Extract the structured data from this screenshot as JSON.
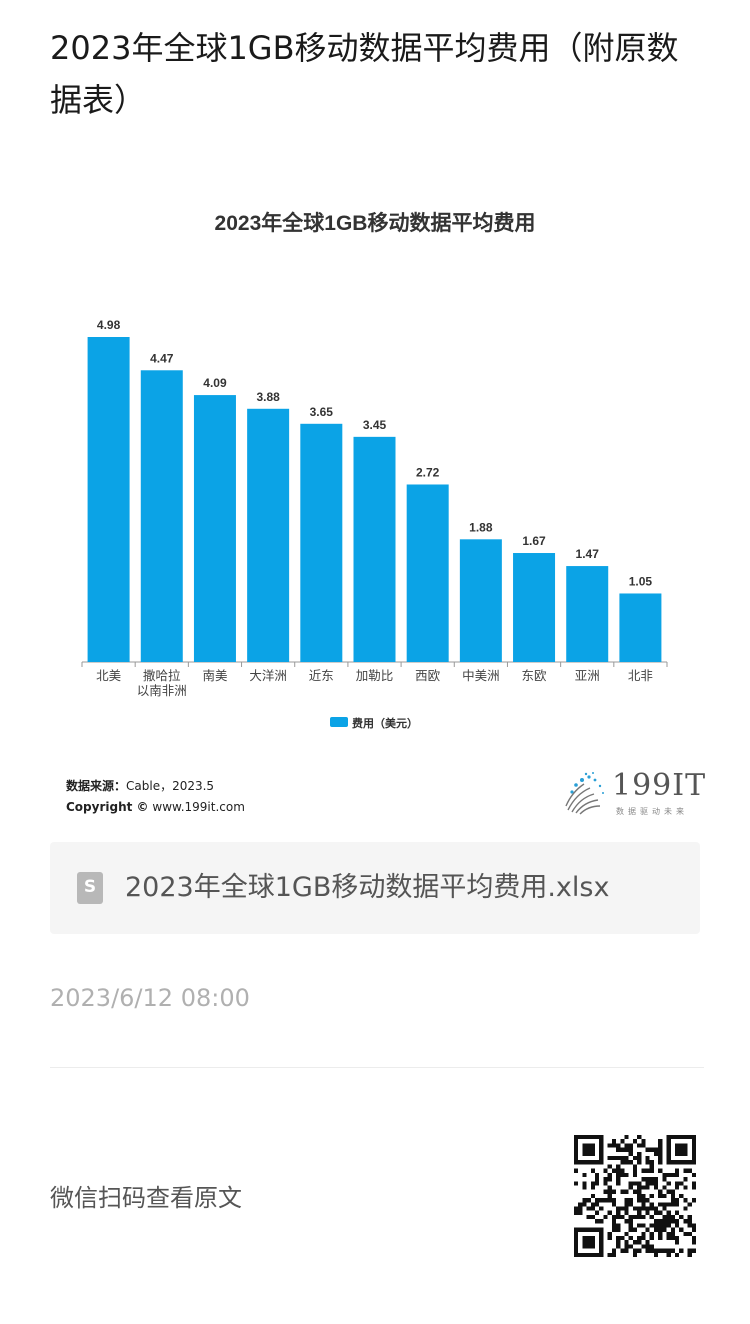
{
  "article": {
    "title": "2023年全球1GB移动数据平均费用（附原数据表）"
  },
  "chart_data": {
    "type": "bar",
    "title": "2023年全球1GB移动数据平均费用",
    "categories": [
      "北美",
      "撒哈拉以南非洲",
      "南美",
      "大洋洲",
      "近东",
      "加勒比",
      "西欧",
      "中美洲",
      "东欧",
      "亚洲",
      "北非"
    ],
    "category_lines": [
      [
        "北美"
      ],
      [
        "撒哈拉",
        "以南非洲"
      ],
      [
        "南美"
      ],
      [
        "大洋洲"
      ],
      [
        "近东"
      ],
      [
        "加勒比"
      ],
      [
        "西欧"
      ],
      [
        "中美洲"
      ],
      [
        "东欧"
      ],
      [
        "亚洲"
      ],
      [
        "北非"
      ]
    ],
    "series": [
      {
        "name": "费用（美元）",
        "values": [
          4.98,
          4.47,
          4.09,
          3.88,
          3.65,
          3.45,
          2.72,
          1.88,
          1.67,
          1.47,
          1.05
        ]
      }
    ],
    "value_labels": [
      "4.98",
      "4.47",
      "4.09",
      "3.88",
      "3.65",
      "3.45",
      "2.72",
      "1.88",
      "1.67",
      "1.47",
      "1.05"
    ],
    "ylim": [
      0,
      5.2
    ],
    "grid": false,
    "legend_position": "bottom",
    "colors": {
      "bar": "#0ba3e6"
    }
  },
  "source": {
    "label": "数据来源：",
    "text": "Cable，2023.5",
    "copyright_label": "Copyright ©",
    "copyright_text": "www.199it.com"
  },
  "logo": {
    "text": "199IT",
    "subtitle": "数据驱动未来"
  },
  "attachment": {
    "icon": "spreadsheet-file-icon",
    "icon_letter": "S",
    "filename": "2023年全球1GB移动数据平均费用.xlsx"
  },
  "meta": {
    "date": "2023/6/12 08:00"
  },
  "footer": {
    "qr_hint": "微信扫码查看原文",
    "qr_icon": "qr-code-icon"
  }
}
